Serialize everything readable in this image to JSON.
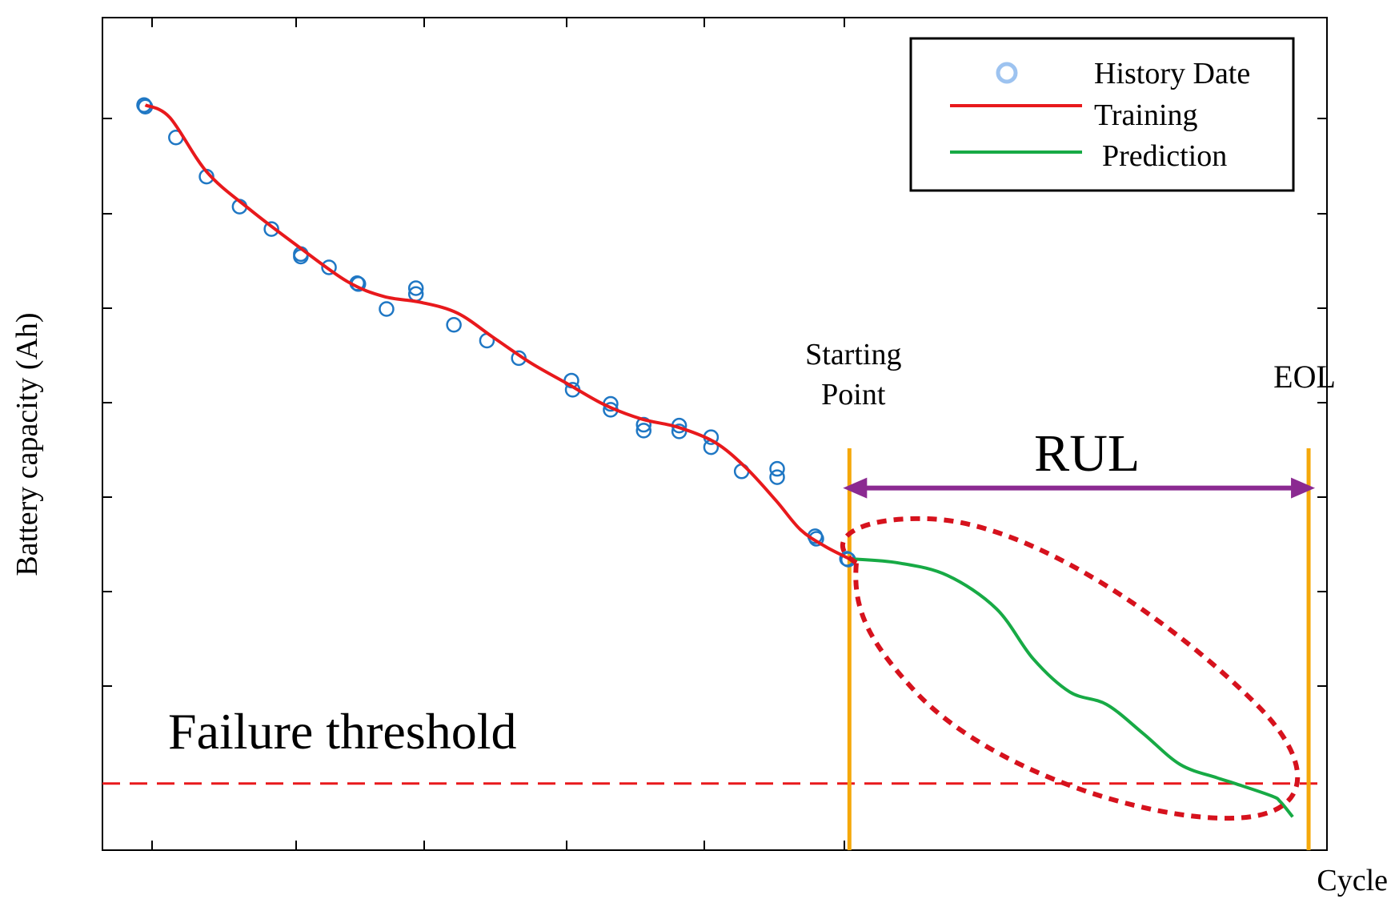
{
  "chart_data": {
    "type": "line",
    "title": "",
    "xlabel": "Cycle",
    "ylabel": "Battery capacity (Ah)",
    "xlim": [
      0,
      100
    ],
    "ylim": [
      0,
      100
    ],
    "grid": false,
    "legend_position": "top-right",
    "legend": [
      {
        "label": "History Date",
        "marker": "circle",
        "color": "#9dc3f0"
      },
      {
        "label": "Training",
        "style": "line",
        "color": "#e8191c"
      },
      {
        "label": "Prediction",
        "style": "line",
        "color": "#17aa45"
      }
    ],
    "series": [
      {
        "name": "History Date",
        "type": "scatter",
        "color": "#1f77c4",
        "points": [
          [
            3.4,
            89.5
          ],
          [
            3.5,
            89.3
          ],
          [
            6.0,
            85.6
          ],
          [
            8.5,
            80.9
          ],
          [
            11.2,
            77.3
          ],
          [
            13.8,
            74.6
          ],
          [
            16.2,
            71.6
          ],
          [
            16.2,
            71.3
          ],
          [
            18.5,
            70.0
          ],
          [
            20.8,
            68.1
          ],
          [
            20.9,
            68.0
          ],
          [
            23.2,
            65.0
          ],
          [
            25.6,
            67.5
          ],
          [
            25.6,
            66.8
          ],
          [
            28.7,
            63.1
          ],
          [
            31.4,
            61.2
          ],
          [
            34.0,
            59.1
          ],
          [
            38.3,
            56.4
          ],
          [
            38.4,
            55.3
          ],
          [
            41.5,
            53.6
          ],
          [
            41.5,
            52.9
          ],
          [
            44.2,
            51.1
          ],
          [
            44.2,
            50.4
          ],
          [
            47.1,
            51.0
          ],
          [
            47.1,
            50.3
          ],
          [
            49.7,
            49.6
          ],
          [
            49.7,
            48.4
          ],
          [
            52.2,
            45.5
          ],
          [
            55.1,
            45.8
          ],
          [
            55.1,
            44.8
          ],
          [
            58.2,
            37.7
          ],
          [
            58.3,
            37.4
          ],
          [
            60.8,
            35.0
          ],
          [
            60.9,
            34.9
          ]
        ]
      },
      {
        "name": "Training",
        "type": "line",
        "color": "#e8191c",
        "points": [
          [
            3.5,
            89.5
          ],
          [
            5.5,
            88.0
          ],
          [
            8.5,
            81.5
          ],
          [
            12.0,
            77.0
          ],
          [
            16.0,
            72.5
          ],
          [
            20.0,
            68.3
          ],
          [
            23.0,
            66.5
          ],
          [
            26.0,
            65.8
          ],
          [
            29.0,
            64.5
          ],
          [
            32.0,
            61.5
          ],
          [
            35.0,
            58.5
          ],
          [
            38.0,
            56.0
          ],
          [
            41.0,
            53.5
          ],
          [
            44.0,
            51.8
          ],
          [
            47.0,
            50.8
          ],
          [
            50.0,
            49.0
          ],
          [
            52.5,
            46.0
          ],
          [
            55.0,
            42.0
          ],
          [
            57.0,
            38.5
          ],
          [
            59.0,
            36.5
          ],
          [
            61.0,
            35.0
          ]
        ]
      },
      {
        "name": "Prediction",
        "type": "line",
        "color": "#17aa45",
        "points": [
          [
            61.0,
            35.0
          ],
          [
            65.0,
            34.5
          ],
          [
            69.0,
            33.0
          ],
          [
            73.0,
            29.0
          ],
          [
            76.0,
            23.0
          ],
          [
            79.0,
            19.0
          ],
          [
            82.0,
            17.5
          ],
          [
            85.0,
            14.0
          ],
          [
            88.0,
            10.3
          ],
          [
            91.0,
            8.7
          ],
          [
            92.5,
            8.0
          ],
          [
            95.5,
            6.5
          ],
          [
            96.2,
            5.8
          ],
          [
            97.2,
            4.0
          ]
        ]
      }
    ],
    "thresholds": [
      {
        "label": "Failure threshold",
        "axis": "y",
        "value": 8.0,
        "style": "dashed",
        "color": "#e8191c"
      }
    ],
    "markers": [
      {
        "label": "Starting Point",
        "axis": "x",
        "value": 61.0,
        "color": "#f5a80a"
      },
      {
        "label": "EOL",
        "axis": "x",
        "value": 98.5,
        "color": "#f5a80a"
      }
    ],
    "annotations": [
      {
        "label": "RUL",
        "type": "double-arrow",
        "from": 61.0,
        "to": 98.5,
        "y": 43.5,
        "color": "#8b2a91"
      },
      {
        "label": "",
        "type": "dashed-ellipse",
        "center": [
          79.0,
          23.0
        ],
        "color": "#d6121d"
      }
    ]
  }
}
